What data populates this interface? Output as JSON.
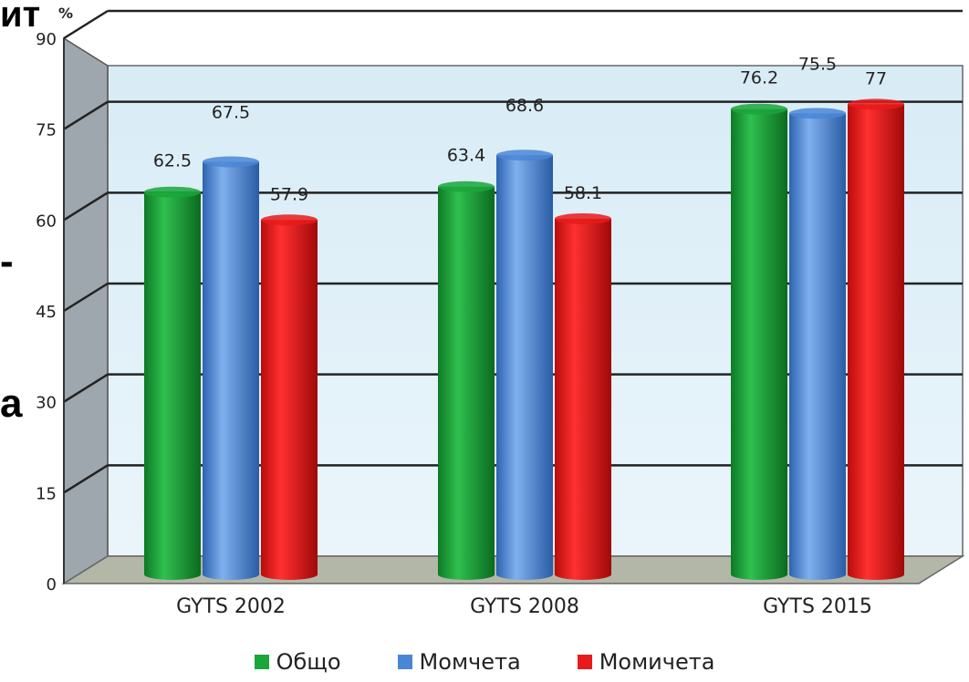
{
  "overlay": {
    "fragment_top": "ит",
    "fragment_mid": "-",
    "fragment_bot": "а"
  },
  "chart_data": {
    "type": "bar",
    "ylabel": "%",
    "ylim": [
      0,
      90
    ],
    "yticks": [
      0,
      15,
      30,
      45,
      60,
      75,
      90
    ],
    "ytick_labels": [
      "0",
      "15",
      "30",
      "45",
      "60",
      "75",
      "90"
    ],
    "grid": true,
    "legend_position": "bottom",
    "categories": [
      "GYTS 2002",
      "GYTS 2008",
      "GYTS 2015"
    ],
    "series": [
      {
        "name": "Общо",
        "values": [
          62.5,
          63.4,
          76.2
        ],
        "value_labels": [
          "62.5",
          "63.4",
          "76.2"
        ],
        "color": "#1aa63a"
      },
      {
        "name": "Момчета",
        "values": [
          67.5,
          68.6,
          75.5
        ],
        "value_labels": [
          "67.5",
          "68.6",
          "75.5"
        ],
        "color": "#4a86d6"
      },
      {
        "name": "Момичета",
        "values": [
          57.9,
          58.1,
          77
        ],
        "value_labels": [
          "57.9",
          "58.1",
          "77"
        ],
        "color": "#e81a1a"
      }
    ]
  }
}
